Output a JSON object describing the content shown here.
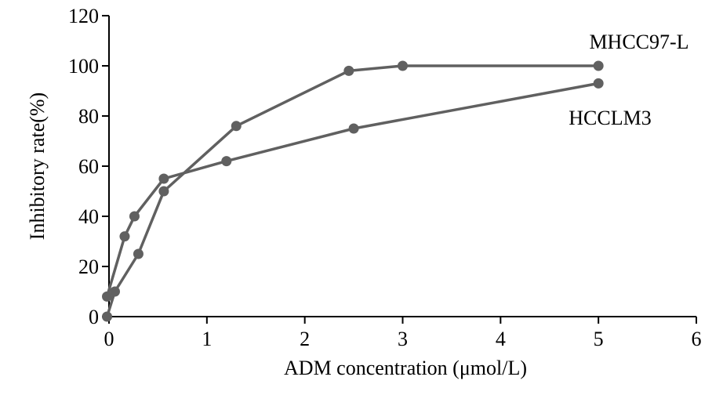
{
  "chart_data": {
    "type": "line",
    "xlabel": "ADM concentration (μmol/L)",
    "ylabel": "Inhibitory rate(%)",
    "xlim": [
      0,
      6
    ],
    "ylim": [
      0,
      120
    ],
    "xticks": [
      0,
      1,
      2,
      3,
      4,
      5,
      6
    ],
    "yticks": [
      0,
      20,
      40,
      60,
      80,
      100,
      120
    ],
    "xtick_labels": [
      "0",
      "1",
      "2",
      "3",
      "4",
      "5",
      "6"
    ],
    "ytick_labels": [
      "0",
      "20",
      "40",
      "60",
      "80",
      "100",
      "120"
    ],
    "grid": false,
    "line_color": "#606060",
    "series": [
      {
        "name": "MHCC97-L",
        "x": [
          -0.02,
          0.06,
          0.3,
          0.56,
          1.3,
          2.45,
          3.0,
          5.0
        ],
        "y": [
          0,
          10,
          25,
          50,
          76,
          98,
          100,
          100
        ]
      },
      {
        "name": "HCCLM3",
        "x": [
          -0.02,
          0.16,
          0.26,
          0.56,
          1.2,
          2.5,
          5.0
        ],
        "y": [
          8,
          32,
          40,
          55,
          62,
          75,
          93
        ]
      }
    ]
  }
}
